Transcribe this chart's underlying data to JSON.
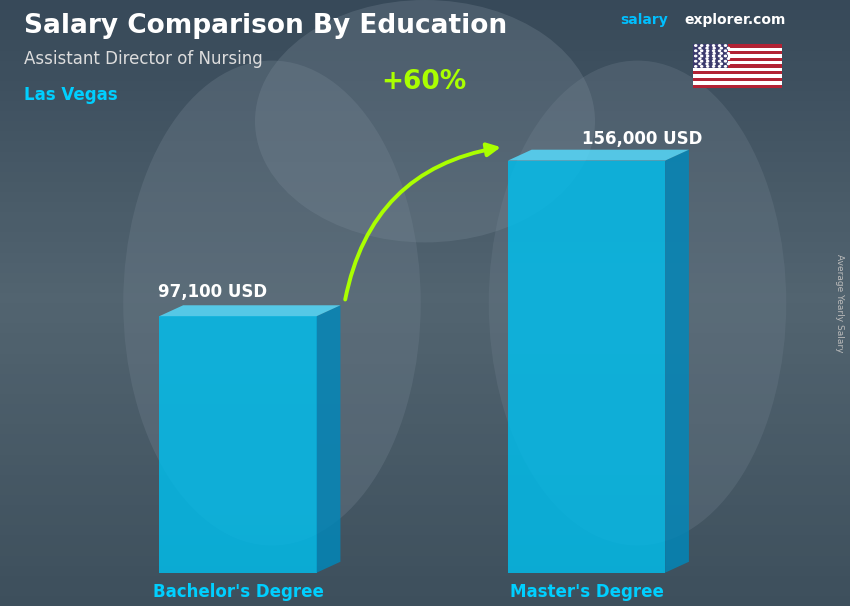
{
  "title": "Salary Comparison By Education",
  "subtitle": "Assistant Director of Nursing",
  "city": "Las Vegas",
  "site_salary": "salary",
  "site_explorer": "explorer.com",
  "ylabel": "Average Yearly Salary",
  "categories": [
    "Bachelor's Degree",
    "Master's Degree"
  ],
  "values": [
    97100,
    156000
  ],
  "labels": [
    "97,100 USD",
    "156,000 USD"
  ],
  "pct_change": "+60%",
  "bar_color_face": "#00BFEE",
  "bar_color_side": "#0088BB",
  "bar_color_top": "#55DDFF",
  "bar_alpha": 0.82,
  "bg_top_color": "#5a6a7a",
  "bg_bottom_color": "#3a4a5a",
  "title_color": "#FFFFFF",
  "subtitle_color": "#DDDDDD",
  "city_color": "#00CFFF",
  "label_color": "#FFFFFF",
  "cat_color": "#00CFFF",
  "pct_color": "#AAFF00",
  "arrow_color": "#AAFF00",
  "site_color1": "#00BFFF",
  "site_color2": "#FFFFFF",
  "ylabel_color": "#BBBBBB",
  "figsize": [
    8.5,
    6.06
  ],
  "dpi": 100
}
